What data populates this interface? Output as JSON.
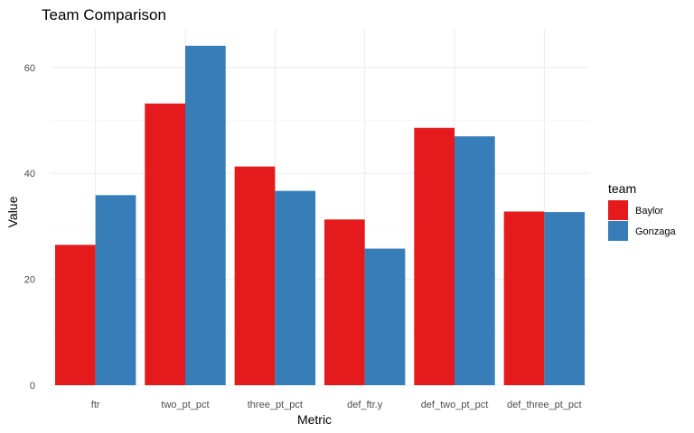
{
  "chart_data": {
    "type": "bar",
    "title": "Team Comparison",
    "xlabel": "Metric",
    "ylabel": "Value",
    "categories": [
      "ftr",
      "two_pt_pct",
      "three_pt_pct",
      "def_ftr.y",
      "def_two_pt_pct",
      "def_three_pt_pct"
    ],
    "series": [
      {
        "name": "Baylor",
        "color": "#e41a1c",
        "values": [
          26.5,
          53.2,
          41.3,
          31.3,
          48.6,
          32.8
        ]
      },
      {
        "name": "Gonzaga",
        "color": "#377eb8",
        "values": [
          35.9,
          64.1,
          36.7,
          25.8,
          47.0,
          32.7
        ]
      }
    ],
    "ylim": [
      0,
      67.3
    ],
    "yticks": [
      0,
      20,
      40,
      60
    ],
    "grid": true,
    "legend": {
      "title": "team",
      "position": "right"
    }
  }
}
